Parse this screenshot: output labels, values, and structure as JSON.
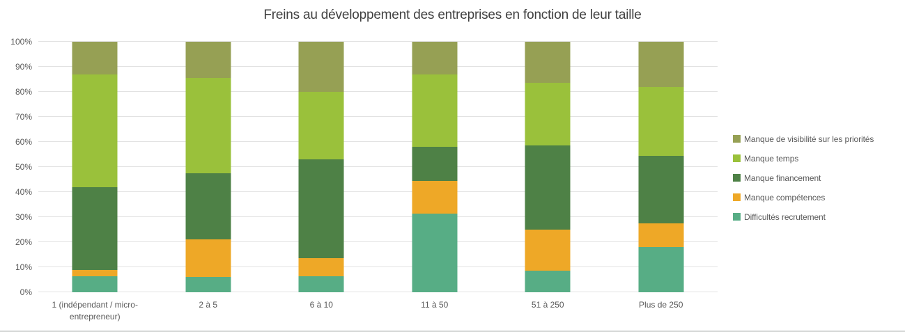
{
  "chart_data": {
    "type": "bar",
    "subtype": "stacked-100-percent",
    "title": "Freins au développement des entreprises en fonction de leur taille",
    "xlabel": "",
    "ylabel": "",
    "ylim": [
      0,
      100
    ],
    "grid": true,
    "legend_position": "right",
    "y_ticks": [
      "0%",
      "10%",
      "20%",
      "30%",
      "40%",
      "50%",
      "60%",
      "70%",
      "80%",
      "90%",
      "100%"
    ],
    "categories": [
      "1 (indépendant / micro-entrepreneur)",
      "2 à 5",
      "6 à 10",
      "11 à 50",
      "51 à 250",
      "Plus de 250"
    ],
    "series": [
      {
        "name": "Difficultés recrutement",
        "color": "#57ad85",
        "values": [
          6.5,
          6,
          6.5,
          31.5,
          8.5,
          18
        ]
      },
      {
        "name": "Manque compétences",
        "color": "#eea827",
        "values": [
          2.5,
          15,
          7,
          13,
          16.5,
          9.5
        ]
      },
      {
        "name": "Manque financement",
        "color": "#4e8146",
        "values": [
          33,
          26.5,
          39.5,
          13.5,
          33.5,
          27
        ]
      },
      {
        "name": "Manque temps",
        "color": "#9ac13b",
        "values": [
          45,
          38,
          27,
          29,
          25,
          27.5
        ]
      },
      {
        "name": "Manque de visibilité sur les priorités",
        "color": "#96a054",
        "values": [
          13,
          14.5,
          20,
          13,
          16.5,
          18
        ]
      }
    ]
  },
  "colors": {
    "title_text": "#404040",
    "axis_text": "#595959",
    "gridline": "#e2e2e2",
    "bottom_divider": "#d7d9d8",
    "background": "#ffffff"
  }
}
